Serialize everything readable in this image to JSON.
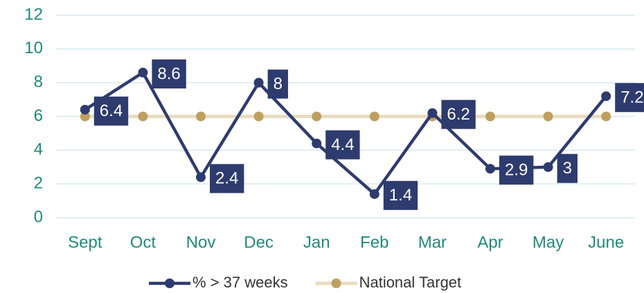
{
  "chart_data": {
    "type": "line",
    "categories": [
      "Sept",
      "Oct",
      "Nov",
      "Dec",
      "Jan",
      "Feb",
      "Mar",
      "Apr",
      "May",
      "June"
    ],
    "series": [
      {
        "name": "% > 37 weeks",
        "color": "#2e3b6e",
        "values": [
          6.4,
          8.6,
          2.4,
          8,
          4.4,
          1.4,
          6.2,
          2.9,
          3,
          7.2
        ],
        "data_labels": true
      },
      {
        "name": "National Target",
        "color": "#e8dcc0",
        "marker_color": "#bf9f60",
        "values": [
          6,
          6,
          6,
          6,
          6,
          6,
          6,
          6,
          6,
          6
        ],
        "data_labels": false
      }
    ],
    "ylim": [
      0,
      12
    ],
    "yticks": [
      0,
      2,
      4,
      6,
      8,
      10,
      12
    ],
    "grid": true,
    "legend": "bottom"
  }
}
